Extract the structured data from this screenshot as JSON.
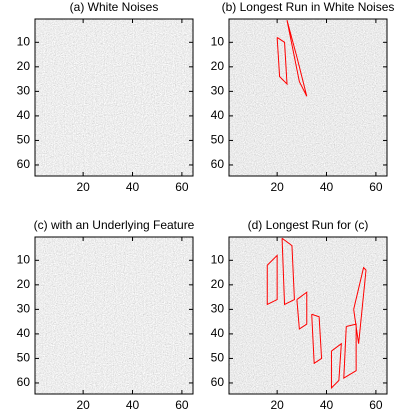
{
  "chart_data": [
    {
      "type": "image",
      "title": "(a) White Noises",
      "xlim": [
        0.5,
        64.5
      ],
      "ylim": [
        0.5,
        64.5
      ],
      "y_inverted": true,
      "xticks": [
        20,
        40,
        60
      ],
      "yticks": [
        10,
        20,
        30,
        40,
        50,
        60
      ]
    },
    {
      "type": "image",
      "title": "(b) Longest Run in White Noises",
      "xlim": [
        0.5,
        64.5
      ],
      "ylim": [
        0.5,
        64.5
      ],
      "y_inverted": true,
      "xticks": [
        20,
        40,
        60
      ],
      "yticks": [
        10,
        20,
        30,
        40,
        50,
        60
      ],
      "series": [
        {
          "color": "#ff0000",
          "x": [
            20,
            21,
            24,
            23,
            20,
            null,
            24,
            28,
            32,
            29,
            24
          ],
          "values": [
            8,
            24,
            27,
            10,
            8,
            null,
            1,
            16,
            32,
            26,
            1
          ]
        }
      ]
    },
    {
      "type": "image",
      "title": "(c) with an Underlying Feature",
      "xlim": [
        0.5,
        64.5
      ],
      "ylim": [
        0.5,
        64.5
      ],
      "y_inverted": true,
      "xticks": [
        20,
        40,
        60
      ],
      "yticks": [
        10,
        20,
        30,
        40,
        50,
        60
      ]
    },
    {
      "type": "image",
      "title": "(d) Longest Run for (c)",
      "xlim": [
        0.5,
        64.5
      ],
      "ylim": [
        0.5,
        64.5
      ],
      "y_inverted": true,
      "xticks": [
        20,
        40,
        60
      ],
      "yticks": [
        10,
        20,
        30,
        40,
        50,
        60
      ],
      "series": [
        {
          "color": "#ff0000",
          "x": [
            16,
            20,
            20,
            16,
            16,
            null,
            22,
            23,
            27,
            26,
            22,
            null,
            28,
            29,
            32,
            32,
            28,
            null,
            34,
            35,
            38,
            37,
            34,
            null,
            42,
            42,
            45,
            46,
            42,
            null,
            48,
            47,
            52,
            52,
            48,
            null,
            51,
            53,
            56,
            55,
            51
          ],
          "values": [
            12,
            8,
            26,
            28,
            12,
            null,
            1,
            28,
            26,
            4,
            1,
            null,
            26,
            38,
            36,
            23,
            26,
            null,
            32,
            52,
            50,
            33,
            32,
            null,
            47,
            62,
            59,
            44,
            47,
            null,
            37,
            58,
            55,
            36,
            37,
            null,
            30,
            44,
            14,
            13,
            30
          ]
        }
      ]
    }
  ]
}
